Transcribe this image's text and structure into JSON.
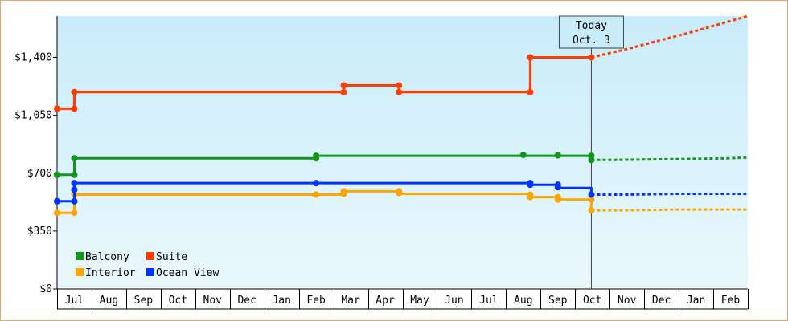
{
  "chart_data": {
    "type": "line",
    "y_ticks": [
      "$0",
      "$350",
      "$700",
      "$1,050",
      "$1,400"
    ],
    "y_tick_values": [
      0,
      350,
      700,
      1050,
      1400
    ],
    "ylim": [
      0,
      1650
    ],
    "x_months": [
      "Jul",
      "Aug",
      "Sep",
      "Oct",
      "Nov",
      "Dec",
      "Jan",
      "Feb",
      "Mar",
      "Apr",
      "May",
      "Jun",
      "Jul",
      "Aug",
      "Sep",
      "Oct",
      "Nov",
      "Dec",
      "Jan",
      "Feb"
    ],
    "xlim": [
      -0.5,
      19.5
    ],
    "today": {
      "line1": "Today",
      "line2": "Oct. 3",
      "x": 14.97
    },
    "grid": false,
    "legend_position": "bottom-left",
    "series": [
      {
        "name": "Balcony",
        "color": "#109618",
        "points": [
          [
            -0.5,
            690
          ],
          [
            0,
            690
          ],
          [
            0,
            790
          ],
          [
            7,
            790
          ],
          [
            7,
            805
          ],
          [
            13,
            805
          ],
          [
            14.97,
            805
          ],
          [
            14.97,
            780
          ]
        ],
        "markers": [
          [
            -0.5,
            690
          ],
          [
            0,
            690
          ],
          [
            0,
            790
          ],
          [
            7,
            790
          ],
          [
            7,
            805
          ],
          [
            13,
            810
          ],
          [
            14,
            808
          ],
          [
            14.97,
            805
          ],
          [
            14.97,
            780
          ]
        ],
        "forecast": [
          [
            14.97,
            780
          ],
          [
            15.5,
            780
          ],
          [
            17.5,
            785
          ],
          [
            19,
            790
          ],
          [
            19.5,
            795
          ]
        ]
      },
      {
        "name": "Suite",
        "color": "#ff3d00",
        "points": [
          [
            -0.5,
            1090
          ],
          [
            0,
            1090
          ],
          [
            0,
            1190
          ],
          [
            7.8,
            1190
          ],
          [
            7.8,
            1230
          ],
          [
            9.4,
            1230
          ],
          [
            9.4,
            1190
          ],
          [
            13.2,
            1190
          ],
          [
            13.2,
            1400
          ],
          [
            14.97,
            1400
          ]
        ],
        "markers": [
          [
            -0.5,
            1090
          ],
          [
            0,
            1090
          ],
          [
            0,
            1190
          ],
          [
            7.8,
            1190
          ],
          [
            7.8,
            1230
          ],
          [
            9.4,
            1230
          ],
          [
            9.4,
            1190
          ],
          [
            13.2,
            1190
          ],
          [
            13.2,
            1400
          ],
          [
            14.97,
            1400
          ]
        ],
        "forecast": [
          [
            14.97,
            1400
          ],
          [
            16,
            1450
          ],
          [
            18,
            1560
          ],
          [
            19.5,
            1650
          ]
        ]
      },
      {
        "name": "Interior",
        "color": "#ffa500",
        "points": [
          [
            -0.5,
            460
          ],
          [
            0,
            460
          ],
          [
            0,
            570
          ],
          [
            7.8,
            570
          ],
          [
            7.8,
            590
          ],
          [
            9.4,
            590
          ],
          [
            9.4,
            575
          ],
          [
            13.2,
            575
          ],
          [
            13.2,
            555
          ],
          [
            14,
            555
          ],
          [
            14,
            540
          ],
          [
            14.97,
            540
          ],
          [
            14.97,
            475
          ]
        ],
        "markers": [
          [
            -0.5,
            460
          ],
          [
            0,
            460
          ],
          [
            0,
            570
          ],
          [
            7,
            570
          ],
          [
            7.8,
            575
          ],
          [
            7.8,
            590
          ],
          [
            9.4,
            590
          ],
          [
            9.4,
            580
          ],
          [
            13.2,
            570
          ],
          [
            13.2,
            555
          ],
          [
            14,
            555
          ],
          [
            14,
            540
          ],
          [
            14.97,
            540
          ],
          [
            14.97,
            475
          ]
        ],
        "forecast": [
          [
            14.97,
            475
          ],
          [
            16,
            475
          ],
          [
            17.5,
            480
          ],
          [
            19.5,
            480
          ]
        ]
      },
      {
        "name": "Ocean View",
        "color": "#0033ff",
        "points": [
          [
            -0.5,
            530
          ],
          [
            0,
            530
          ],
          [
            0,
            640
          ],
          [
            13.2,
            640
          ],
          [
            13.2,
            630
          ],
          [
            14,
            630
          ],
          [
            14,
            610
          ],
          [
            14.97,
            610
          ],
          [
            14.97,
            570
          ]
        ],
        "markers": [
          [
            -0.5,
            530
          ],
          [
            0,
            530
          ],
          [
            0,
            600
          ],
          [
            0,
            640
          ],
          [
            7,
            640
          ],
          [
            13.2,
            640
          ],
          [
            13.2,
            630
          ],
          [
            14,
            630
          ],
          [
            14,
            615
          ],
          [
            14.97,
            570
          ]
        ],
        "forecast": [
          [
            14.97,
            570
          ],
          [
            16,
            570
          ],
          [
            17.5,
            575
          ],
          [
            19.5,
            575
          ]
        ]
      }
    ]
  }
}
